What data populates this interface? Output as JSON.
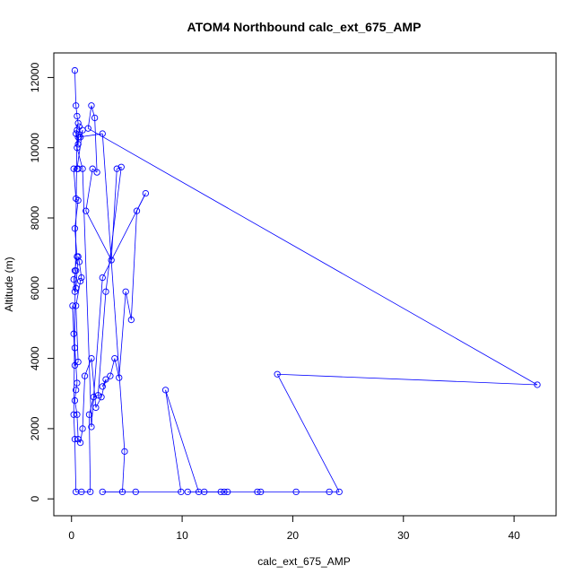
{
  "chart_data": {
    "type": "line",
    "title": "ATOM4 Northbound calc_ext_675_AMP",
    "xlabel": "calc_ext_675_AMP",
    "ylabel": "Altitude (m)",
    "xlim": [
      -1.6,
      43.8
    ],
    "ylim": [
      -480,
      12700
    ],
    "xticks": [
      0,
      10,
      20,
      30,
      40
    ],
    "yticks": [
      0,
      2000,
      4000,
      6000,
      8000,
      10000,
      12000
    ],
    "grid": false,
    "legend": "none",
    "color": "#0000ff",
    "marker": "open-circle",
    "series": [
      {
        "x": [
          0.3,
          0.4,
          0.5,
          0.6,
          0.4,
          0.6,
          0.7,
          0.8,
          1.0,
          0.5,
          0.6,
          0.2,
          0.4,
          0.6,
          0.3,
          0.5,
          0.3,
          0.4,
          0.2,
          0.3,
          0.4,
          0.6,
          0.7,
          0.9,
          0.8,
          0.4,
          0.6,
          0.3,
          0.2,
          0.1,
          0.3,
          0.5,
          0.4,
          0.3,
          0.5,
          0.6,
          0.8,
          1.0,
          1.2,
          1.8,
          2.2,
          2.7,
          3.1,
          2.8,
          3.5,
          3.9,
          4.3,
          4.9,
          5.4,
          5.9,
          6.7,
          2.8,
          1.8,
          1.0,
          0.5,
          0.6,
          2.8,
          4.8,
          4.6,
          2.8,
          5.8,
          9.9,
          8.5,
          11.5,
          13.5,
          14.1,
          13.8,
          12.0,
          10.5,
          16.8,
          17.1,
          20.3,
          23.3,
          24.2,
          18.6,
          42.1,
          1.5,
          1.8,
          2.1,
          2.3,
          1.9,
          1.3,
          3.6,
          4.1,
          4.5,
          3.1,
          2.4,
          2.0,
          1.6,
          1.7,
          0.9,
          0.4,
          0.3,
          0.2,
          0.5
        ],
        "y": [
          12200,
          11200,
          10900,
          10700,
          10400,
          10100,
          10600,
          10300,
          10500,
          9400,
          9400,
          9400,
          8550,
          8500,
          7700,
          6900,
          6500,
          6500,
          6250,
          5900,
          6000,
          6900,
          6750,
          6300,
          6200,
          5500,
          3900,
          3800,
          4700,
          5500,
          4300,
          3300,
          3100,
          2800,
          2400,
          1700,
          1600,
          2000,
          3500,
          4000,
          2600,
          2900,
          3400,
          3200,
          3500,
          4000,
          3450,
          5900,
          5100,
          8200,
          8700,
          6300,
          2050,
          9400,
          10000,
          10300,
          10400,
          1350,
          200,
          200,
          200,
          200,
          3100,
          200,
          200,
          200,
          200,
          200,
          200,
          200,
          200,
          200,
          200,
          200,
          3550,
          3250,
          10550,
          11200,
          10850,
          9300,
          9400,
          8200,
          6800,
          9400,
          9450,
          5900,
          2950,
          2900,
          2400,
          200,
          200,
          200,
          1700,
          2400,
          10500
        ]
      }
    ]
  }
}
